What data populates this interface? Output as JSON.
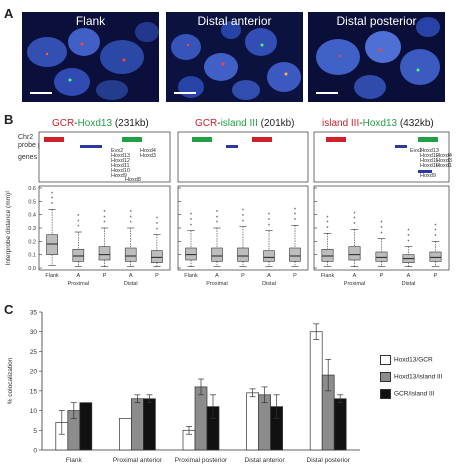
{
  "panel_a": {
    "letter": "A",
    "images": [
      {
        "label": "Flank"
      },
      {
        "label": "Distal anterior"
      },
      {
        "label": "Distal posterior"
      }
    ]
  },
  "panel_b": {
    "letter": "B",
    "groups": [
      {
        "title_a": "GCR",
        "dash": "-",
        "title_b": "Hoxd13",
        "size": "(231kb)",
        "a_color": "#d0202a",
        "b_color": "#21a046"
      },
      {
        "title_a": "GCR",
        "dash": "-",
        "title_b": "island III",
        "size": "(201kb)",
        "a_color": "#d0202a",
        "b_color": "#21a046"
      },
      {
        "title_a": "island III",
        "dash": "-",
        "title_b": "Hoxd13",
        "size": "(432kb)",
        "a_color": "#d0202a",
        "b_color": "#21a046"
      }
    ],
    "track_label_1": "Chr2",
    "track_label_2": "probe pairs",
    "genes_label": "genes",
    "gene_names": {
      "g1": [
        "Evx2",
        "Hoxd13",
        "Hoxd12",
        "Hoxd11",
        "Hoxd10",
        "Hoxd9",
        "Hoxd8"
      ],
      "g1_right": [
        "Hoxd4",
        "Hoxd3"
      ],
      "g3": [
        "Hoxd13",
        "Hoxd12",
        "Hoxd11",
        "Hoxd10",
        "Hoxd9"
      ],
      "g3_left": "Evx2",
      "g3_right": [
        "Hoxd4",
        "Hoxd3",
        "Hoxd1"
      ]
    },
    "y_axis_label": "Interprobe distance (mm)²",
    "x_groups": [
      "Proximal",
      "Distal"
    ],
    "x_ticks": [
      "Flank",
      "A",
      "P",
      "A",
      "P"
    ]
  },
  "panel_c": {
    "letter": "C"
  },
  "chart_data": [
    {
      "type": "box",
      "title": "GCR-Hoxd13 (231kb)",
      "ylabel": "Interprobe distance (mm)²",
      "ylim": [
        0,
        0.6
      ],
      "yticks": [
        0,
        0.1,
        0.2,
        0.3,
        0.4,
        0.5,
        0.6
      ],
      "categories": [
        "Flank",
        "Proximal A",
        "Proximal P",
        "Distal A",
        "Distal P"
      ],
      "boxes": [
        {
          "min": 0.02,
          "q1": 0.1,
          "median": 0.18,
          "q3": 0.25,
          "max": 0.44
        },
        {
          "min": 0.01,
          "q1": 0.05,
          "median": 0.09,
          "q3": 0.14,
          "max": 0.27
        },
        {
          "min": 0.01,
          "q1": 0.06,
          "median": 0.1,
          "q3": 0.16,
          "max": 0.3
        },
        {
          "min": 0.01,
          "q1": 0.05,
          "median": 0.09,
          "q3": 0.15,
          "max": 0.3
        },
        {
          "min": 0.01,
          "q1": 0.04,
          "median": 0.08,
          "q3": 0.13,
          "max": 0.25
        }
      ]
    },
    {
      "type": "box",
      "title": "GCR-island III (201kb)",
      "ylim": [
        0,
        0.6
      ],
      "categories": [
        "Flank",
        "Proximal A",
        "Proximal P",
        "Distal A",
        "Distal P"
      ],
      "boxes": [
        {
          "min": 0.01,
          "q1": 0.06,
          "median": 0.1,
          "q3": 0.15,
          "max": 0.28
        },
        {
          "min": 0.01,
          "q1": 0.05,
          "median": 0.09,
          "q3": 0.15,
          "max": 0.3
        },
        {
          "min": 0.01,
          "q1": 0.05,
          "median": 0.09,
          "q3": 0.15,
          "max": 0.31
        },
        {
          "min": 0.01,
          "q1": 0.05,
          "median": 0.08,
          "q3": 0.13,
          "max": 0.28
        },
        {
          "min": 0.01,
          "q1": 0.05,
          "median": 0.09,
          "q3": 0.15,
          "max": 0.32
        }
      ]
    },
    {
      "type": "box",
      "title": "island III-Hoxd13 (432kb)",
      "ylim": [
        0,
        0.6
      ],
      "categories": [
        "Flank",
        "Proximal A",
        "Proximal P",
        "Distal A",
        "Distal P"
      ],
      "boxes": [
        {
          "min": 0.01,
          "q1": 0.05,
          "median": 0.09,
          "q3": 0.14,
          "max": 0.26
        },
        {
          "min": 0.01,
          "q1": 0.06,
          "median": 0.1,
          "q3": 0.16,
          "max": 0.29
        },
        {
          "min": 0.01,
          "q1": 0.05,
          "median": 0.08,
          "q3": 0.12,
          "max": 0.22
        },
        {
          "min": 0.01,
          "q1": 0.04,
          "median": 0.07,
          "q3": 0.1,
          "max": 0.16
        },
        {
          "min": 0.01,
          "q1": 0.05,
          "median": 0.08,
          "q3": 0.12,
          "max": 0.2
        }
      ]
    },
    {
      "type": "bar",
      "ylabel": "% colocalization",
      "ylim": [
        0,
        35
      ],
      "yticks": [
        0,
        5,
        10,
        15,
        20,
        25,
        30,
        35
      ],
      "categories": [
        "Flank",
        "Proximal anterior",
        "Proximal posterior",
        "Distal anterior",
        "Distal posterior"
      ],
      "series": [
        {
          "name": "Hoxd13/GCR",
          "color": "#ffffff",
          "values": [
            7,
            8,
            5,
            14.5,
            30
          ],
          "errors": [
            3,
            0,
            1,
            1,
            2
          ]
        },
        {
          "name": "Hoxd13/island III",
          "color": "#8c8c8c",
          "values": [
            10,
            13,
            16,
            14,
            19
          ],
          "errors": [
            2,
            1,
            2,
            2,
            4
          ]
        },
        {
          "name": "GCR/island III",
          "color": "#111111",
          "values": [
            12,
            13,
            11,
            11,
            13
          ],
          "errors": [
            0,
            1,
            3,
            3,
            1
          ]
        }
      ],
      "legend": "right"
    }
  ]
}
